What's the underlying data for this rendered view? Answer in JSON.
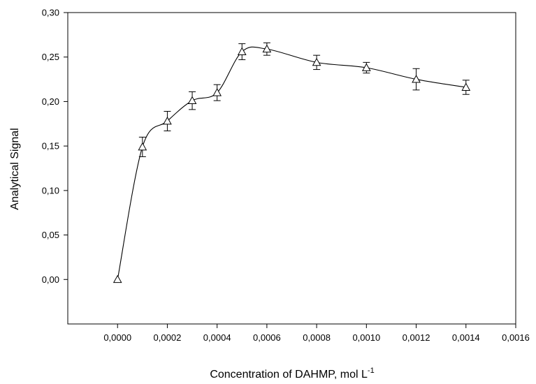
{
  "chart_data": {
    "type": "scatter",
    "title": "",
    "xlabel": "Concentration of DAHMP, mol L",
    "xlabel_superscript": "-1",
    "ylabel": "Analytical Signal",
    "xlim": [
      -0.0002,
      0.0016
    ],
    "ylim": [
      -0.05,
      0.3
    ],
    "x_ticks": [
      0.0,
      0.0002,
      0.0004,
      0.0006,
      0.0008,
      0.001,
      0.0012,
      0.0014,
      0.0016
    ],
    "x_tick_labels": [
      "0,0000",
      "0,0002",
      "0,0004",
      "0,0006",
      "0,0008",
      "0,0010",
      "0,0012",
      "0,0014",
      "0,0016"
    ],
    "y_ticks": [
      0.0,
      0.05,
      0.1,
      0.15,
      0.2,
      0.25,
      0.3
    ],
    "y_tick_labels": [
      "0,00",
      "0,05",
      "0,10",
      "0,15",
      "0,20",
      "0,25",
      "0,30"
    ],
    "grid": false,
    "legend": "none",
    "marker": "open-triangle",
    "line": "smooth-spline",
    "series": [
      {
        "x": [
          0.0,
          0.0001,
          0.0002,
          0.0003,
          0.0004,
          0.0005,
          0.0006,
          0.0008,
          0.001,
          0.0012,
          0.0014
        ],
        "y": [
          0.0,
          0.149,
          0.178,
          0.201,
          0.21,
          0.256,
          0.259,
          0.244,
          0.238,
          0.225,
          0.216
        ],
        "error": [
          0.0,
          0.011,
          0.011,
          0.01,
          0.009,
          0.009,
          0.007,
          0.008,
          0.006,
          0.012,
          0.008
        ]
      }
    ]
  }
}
